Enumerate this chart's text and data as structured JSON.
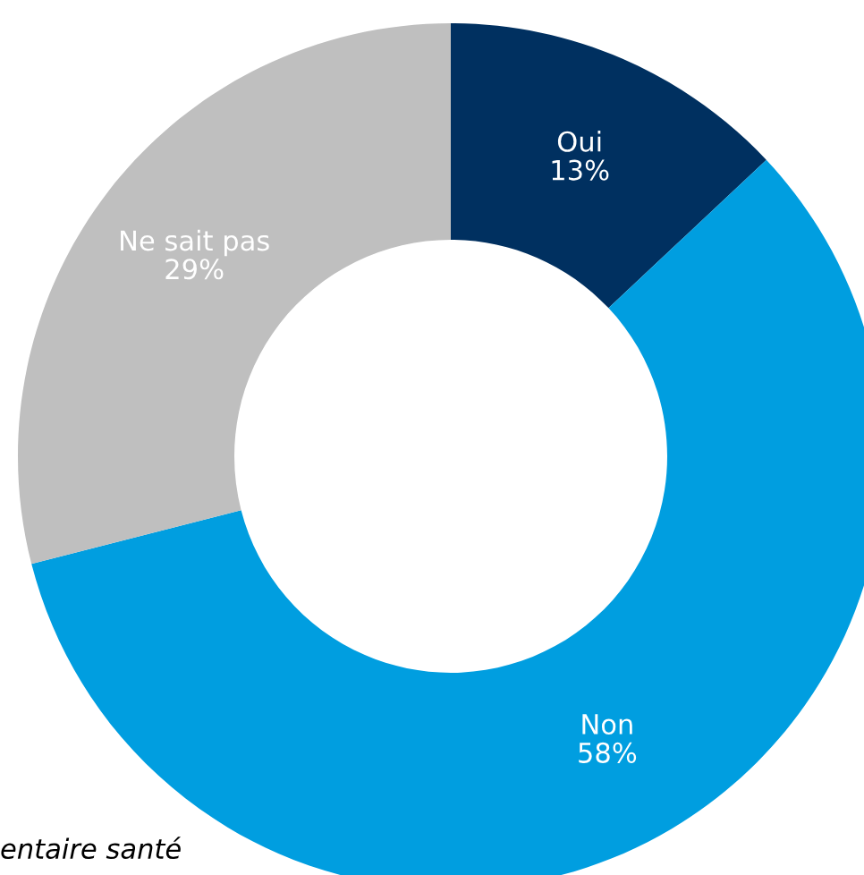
{
  "chart_data": {
    "type": "donut",
    "categories": [
      "Oui",
      "Non",
      "Ne sait pas"
    ],
    "values": [
      13,
      58,
      29
    ],
    "colors": [
      "#003060",
      "#009ee0",
      "#bfbfbf"
    ],
    "value_labels": [
      "13%",
      "58%",
      "29%"
    ],
    "legend": false,
    "annotations": [
      "entaire santé"
    ]
  }
}
